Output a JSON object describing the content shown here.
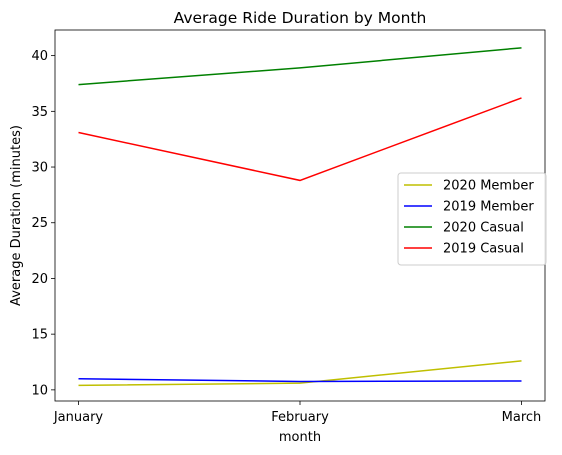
{
  "chart_data": {
    "type": "line",
    "title": "Average Ride Duration by Month",
    "xlabel": "month",
    "ylabel": "Average Duration (minutes)",
    "categories": [
      "January",
      "February",
      "March"
    ],
    "ylim": [
      9.0,
      42.3
    ],
    "yticks": [
      10,
      15,
      20,
      25,
      30,
      35,
      40
    ],
    "grid": false,
    "legend_position": "center-right",
    "series": [
      {
        "name": "2020 Member",
        "color": "#bfbf00",
        "values": [
          10.4,
          10.6,
          12.6
        ]
      },
      {
        "name": "2019 Member",
        "color": "#0000ff",
        "values": [
          11.0,
          10.75,
          10.8
        ]
      },
      {
        "name": "2020 Casual",
        "color": "#008000",
        "values": [
          37.4,
          38.9,
          40.7
        ]
      },
      {
        "name": "2019 Casual",
        "color": "#ff0000",
        "values": [
          33.1,
          28.8,
          36.2
        ]
      }
    ]
  }
}
